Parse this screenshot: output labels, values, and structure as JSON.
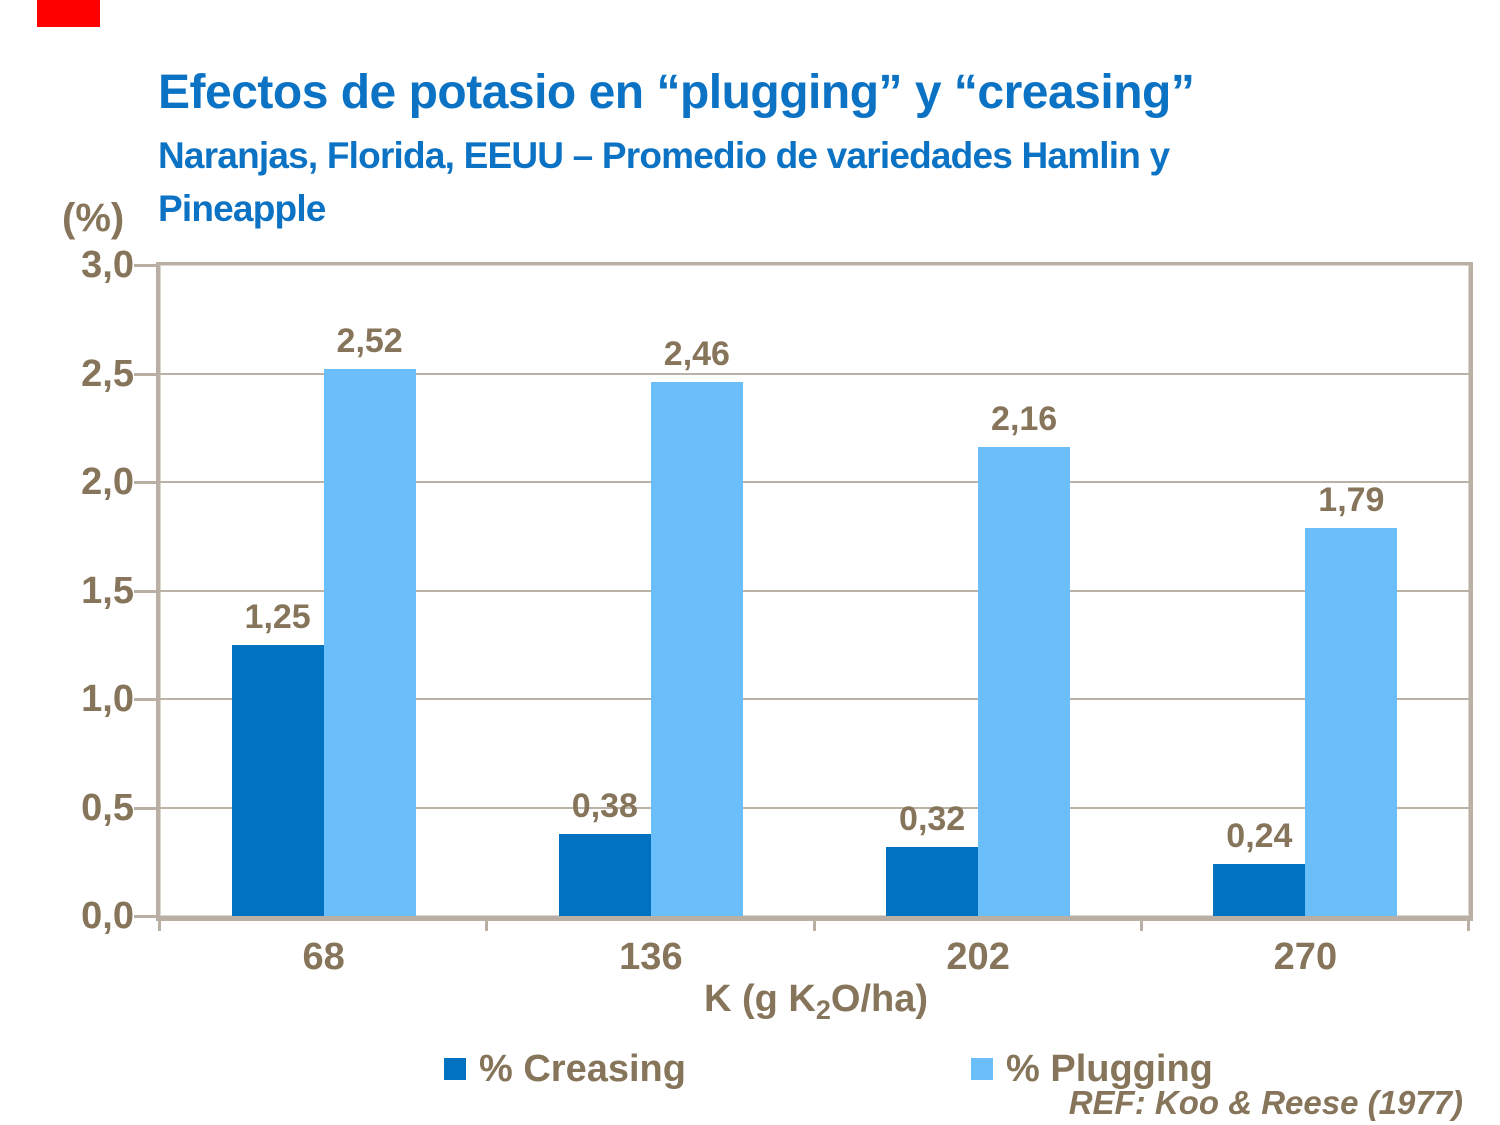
{
  "slide": {
    "title": "Efectos de potasio en “plugging” y “creasing”",
    "subtitle_line1": "Naranjas, Florida, EEUU – Promedio de variedades Hamlin y",
    "subtitle_line2": "Pineapple",
    "reference": "REF: Koo & Reese (1977)"
  },
  "colors": {
    "title_blue": "#0C73C4",
    "creasing_blue": "#0072C0",
    "plugging_blue": "#6ABEFA",
    "text_brown": "#86755A",
    "axis_taupe": "#B9AFA4",
    "grid_taupe": "#BBB2A7",
    "corner_red": "#FF0000"
  },
  "chart_data": {
    "type": "bar",
    "title": "Efectos de potasio en “plugging” y “creasing”",
    "subtitle": "Naranjas, Florida, EEUU – Promedio de variedades Hamlin y Pineapple",
    "categories": [
      "68",
      "136",
      "202",
      "270"
    ],
    "series": [
      {
        "name": "% Creasing",
        "color_key": "creasing_blue",
        "values": [
          1.25,
          0.38,
          0.32,
          0.24
        ],
        "value_labels": [
          "1,25",
          "0,38",
          "0,32",
          "0,24"
        ]
      },
      {
        "name": "% Plugging",
        "color_key": "plugging_blue",
        "values": [
          2.52,
          2.46,
          2.16,
          1.79
        ],
        "value_labels": [
          "2,52",
          "2,46",
          "2,16",
          "1,79"
        ]
      }
    ],
    "xlabel": {
      "pre": "K (g K",
      "sub": "2",
      "post": "O/ha)"
    },
    "ylabel": "(%)",
    "ylim": [
      0,
      3
    ],
    "ytick_step": 0.5,
    "ytick_labels": [
      "0,0",
      "0,5",
      "1,0",
      "1,5",
      "2,0",
      "2,5",
      "3,0"
    ],
    "grid": true,
    "legend_position": "bottom",
    "value_labels_shown": true
  }
}
